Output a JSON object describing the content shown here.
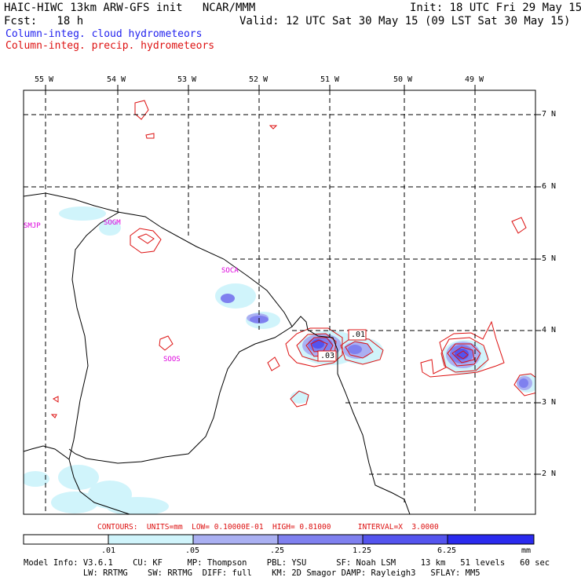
{
  "header": {
    "model_line": "HAIC-HIWC 13km ARW-GFS init   NCAR/MMM",
    "init_line": "Init: 18 UTC Fri 29 May 15",
    "fcst_line": "Fcst:   18 h",
    "valid_line": "Valid: 12 UTC Sat 30 May 15 (09 LST Sat 30 May 15)",
    "field1": "Column-integ. cloud hydrometeors",
    "field2": "Column-integ. precip. hydrometeors"
  },
  "axes": {
    "lon_labels": [
      "55 W",
      "54 W",
      "53 W",
      "52 W",
      "51 W",
      "50 W",
      "49 W"
    ],
    "lat_labels": [
      "7 N",
      "6 N",
      "5 N",
      "4 N",
      "3 N",
      "2 N"
    ]
  },
  "stations": [
    "SMJP",
    "SOGM",
    "SOCA",
    "SOOS"
  ],
  "contour_labels": [
    ".01",
    ".03"
  ],
  "contours_line": "CONTOURS:  UNITS=mm  LOW= 0.10000E-01  HIGH= 0.81000      INTERVAL=X  3.0000",
  "colorbar": {
    "ticks": [
      ".01",
      ".05",
      ".25",
      "1.25",
      "6.25"
    ],
    "unit": "mm",
    "colors": [
      "#ffffff",
      "#d0f4fb",
      "#aab0f2",
      "#7f80ef",
      "#5454ee",
      "#2a2aee"
    ]
  },
  "footer": {
    "line1": "Model Info: V3.6.1    CU: KF     MP: Thompson    PBL: YSU      SF: Noah LSM     13 km   51 levels   60 sec",
    "line2": "            LW: RRTMG    SW: RRTMG  DIFF: full    KM: 2D Smagor DAMP: Rayleigh3   SFLAY: MM5"
  }
}
